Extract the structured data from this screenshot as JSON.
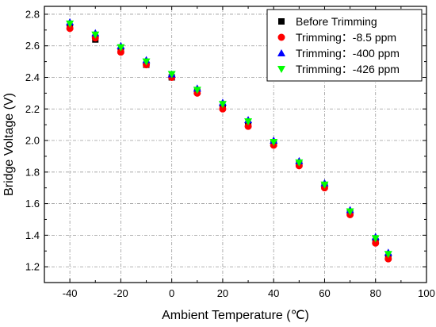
{
  "chart_data": {
    "type": "scatter",
    "title": "",
    "xlabel": "Ambient Temperature (℃)",
    "ylabel": "Bridge Voltage (V)",
    "xlim": [
      -50,
      100
    ],
    "ylim": [
      1.1,
      2.85
    ],
    "xticks": [
      -40,
      -20,
      0,
      20,
      40,
      60,
      80,
      100
    ],
    "yticks": [
      1.2,
      1.4,
      1.6,
      1.8,
      2.0,
      2.2,
      2.4,
      2.6,
      2.8
    ],
    "xtick_labels": [
      "-40",
      "-20",
      "0",
      "20",
      "40",
      "60",
      "80",
      "100"
    ],
    "ytick_labels": [
      "1.2",
      "1.4",
      "1.6",
      "1.8",
      "2.0",
      "2.2",
      "2.4",
      "2.6",
      "2.8"
    ],
    "grid": true,
    "legend_position": "top-right",
    "x": [
      -40,
      -30,
      -20,
      -10,
      0,
      10,
      20,
      30,
      40,
      50,
      60,
      70,
      80,
      85
    ],
    "series": [
      {
        "name": "Before Trimming",
        "marker": "square",
        "color": "#000000",
        "values": [
          2.72,
          2.64,
          2.57,
          2.48,
          2.4,
          2.31,
          2.21,
          2.1,
          1.98,
          1.85,
          1.71,
          1.54,
          1.36,
          1.26
        ]
      },
      {
        "name": "Trimming：-8.5 ppm",
        "marker": "circle",
        "color": "#ff0000",
        "values": [
          2.71,
          2.65,
          2.56,
          2.48,
          2.4,
          2.3,
          2.2,
          2.09,
          1.97,
          1.84,
          1.7,
          1.53,
          1.35,
          1.25
        ]
      },
      {
        "name": "Trimming：-400 ppm",
        "marker": "triangle-up",
        "color": "#0000ff",
        "values": [
          2.75,
          2.68,
          2.6,
          2.51,
          2.42,
          2.33,
          2.24,
          2.13,
          2.0,
          1.87,
          1.73,
          1.56,
          1.39,
          1.29
        ]
      },
      {
        "name": "Trimming：-426 ppm",
        "marker": "triangle-down",
        "color": "#00ff00",
        "values": [
          2.74,
          2.67,
          2.59,
          2.5,
          2.42,
          2.32,
          2.23,
          2.12,
          1.99,
          1.86,
          1.72,
          1.55,
          1.38,
          1.28
        ]
      }
    ]
  }
}
